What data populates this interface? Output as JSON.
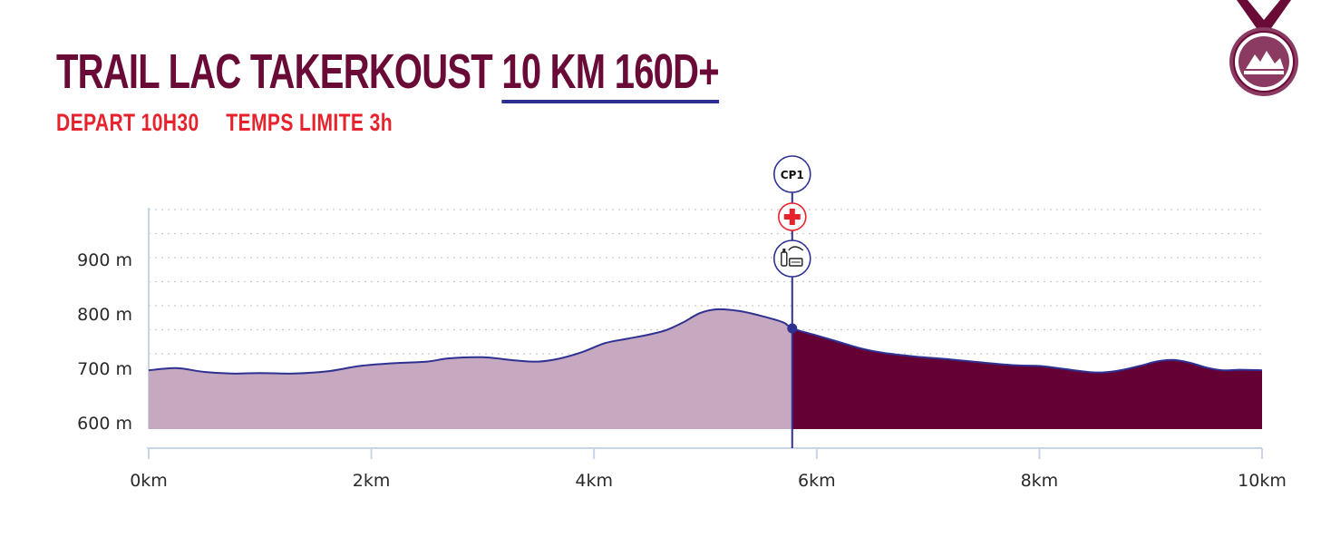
{
  "header": {
    "title_main": "TRAIL LAC TAKERKOUST",
    "title_distance": "10 KM 160D+",
    "depart": "DEPART 10H30",
    "time_limit": "TEMPS LIMITE 3h"
  },
  "colors": {
    "title": "#6a0a37",
    "subtitle": "#e8222d",
    "underline": "#2e3192",
    "profile_done": "#c6a8c0",
    "profile_remaining": "#650035",
    "profile_line": "#2e3192",
    "axis": "#c8d4e8",
    "grid": "#c9c9c9"
  },
  "checkpoint": {
    "label": "CP1",
    "km": 5.78,
    "elevation": 775,
    "icons": [
      "medical-cross-icon",
      "refreshment-icon"
    ]
  },
  "chart_data": {
    "type": "area",
    "xlabel": "",
    "ylabel": "",
    "xlim": [
      0,
      10
    ],
    "ylim": [
      590,
      990
    ],
    "x_ticks": [
      0,
      2,
      4,
      6,
      8,
      10
    ],
    "x_tick_labels": [
      "0km",
      "2km",
      "4km",
      "6km",
      "8km",
      "10km"
    ],
    "y_ticks": [
      600,
      700,
      800,
      900
    ],
    "y_tick_labels": [
      "600 m",
      "700 m",
      "800 m",
      "900 m"
    ],
    "grid": true,
    "legend": "none",
    "series": [
      {
        "x": [
          0,
          0.25,
          0.5,
          0.75,
          1.0,
          1.3,
          1.6,
          1.9,
          2.2,
          2.5,
          2.7,
          3.0,
          3.3,
          3.5,
          3.7,
          3.9,
          4.1,
          4.3,
          4.5,
          4.65,
          4.8,
          4.95,
          5.1,
          5.3,
          5.5,
          5.7,
          5.78,
          6.0,
          6.2,
          6.4,
          6.6,
          6.9,
          7.2,
          7.5,
          7.8,
          8.0,
          8.2,
          8.5,
          8.7,
          8.9,
          9.05,
          9.2,
          9.35,
          9.5,
          9.65,
          9.8,
          10.0
        ],
        "y": [
          698,
          702,
          695,
          692,
          693,
          692,
          696,
          706,
          711,
          714,
          720,
          722,
          716,
          714,
          720,
          732,
          748,
          756,
          764,
          772,
          786,
          803,
          810,
          807,
          798,
          786,
          775,
          762,
          750,
          738,
          730,
          723,
          718,
          712,
          707,
          706,
          701,
          694,
          697,
          706,
          714,
          717,
          712,
          703,
          698,
          699,
          698
        ]
      }
    ]
  }
}
